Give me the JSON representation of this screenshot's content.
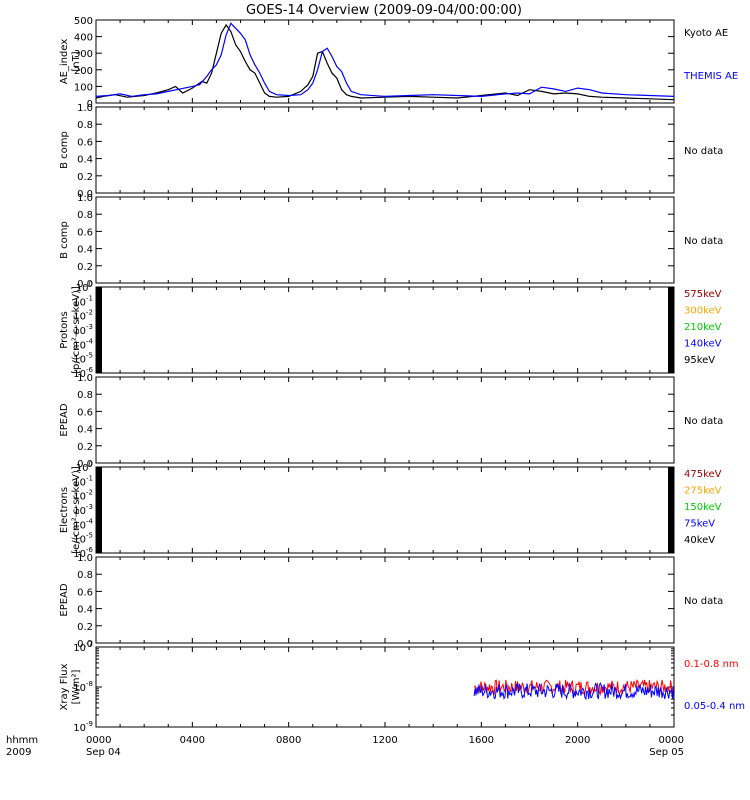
{
  "title": "GOES-14 Overview (2009-09-04/00:00:00)",
  "colors": {
    "black": "#000000",
    "blue": "#0000ff",
    "red": "#ff0000",
    "darkred": "#990000",
    "orange": "#ffa500",
    "green": "#00cc00"
  },
  "time_axis": {
    "hhmm_label": "hhmm",
    "year_label": "2009",
    "ticks": [
      {
        "hour": 0,
        "label": "0000",
        "sub": "Sep 04"
      },
      {
        "hour": 4,
        "label": "0400",
        "sub": ""
      },
      {
        "hour": 8,
        "label": "0800",
        "sub": ""
      },
      {
        "hour": 12,
        "label": "1200",
        "sub": ""
      },
      {
        "hour": 16,
        "label": "1600",
        "sub": ""
      },
      {
        "hour": 20,
        "label": "2000",
        "sub": ""
      },
      {
        "hour": 24,
        "label": "0000",
        "sub": "Sep 05"
      }
    ]
  },
  "chart_data": [
    {
      "type": "line",
      "ylabel": "AE_index",
      "units": "[nT]",
      "ylim": [
        0,
        500
      ],
      "yticks": [
        {
          "v": 0,
          "label": "0"
        },
        {
          "v": 100,
          "label": "100"
        },
        {
          "v": 200,
          "label": "200"
        },
        {
          "v": 300,
          "label": "300"
        },
        {
          "v": 400,
          "label": "400"
        },
        {
          "v": 500,
          "label": "500"
        }
      ],
      "series": [
        {
          "name": "Kyoto AE",
          "color": "#000000",
          "x": [
            0,
            0.3,
            0.8,
            1.3,
            2,
            2.5,
            3,
            3.3,
            3.6,
            4,
            4.4,
            4.6,
            4.8,
            5,
            5.2,
            5.4,
            5.6,
            5.8,
            6,
            6.2,
            6.4,
            6.6,
            6.8,
            7,
            7.2,
            7.5,
            8,
            8.5,
            8.8,
            9,
            9.2,
            9.4,
            9.6,
            9.8,
            10,
            10.2,
            10.4,
            10.6,
            11,
            12,
            13,
            14,
            15,
            16,
            17,
            17.5,
            18,
            18.5,
            19,
            19.5,
            20,
            20.5,
            21,
            22,
            23,
            24
          ],
          "y": [
            30,
            40,
            50,
            35,
            45,
            60,
            80,
            100,
            60,
            90,
            130,
            120,
            180,
            300,
            420,
            470,
            430,
            350,
            310,
            250,
            200,
            180,
            120,
            60,
            40,
            35,
            40,
            70,
            110,
            160,
            300,
            310,
            240,
            180,
            150,
            80,
            50,
            40,
            30,
            35,
            40,
            35,
            30,
            45,
            60,
            45,
            80,
            70,
            55,
            60,
            55,
            40,
            35,
            30,
            25,
            20
          ]
        },
        {
          "name": "THEMIS AE",
          "color": "#0000ff",
          "x": [
            0,
            0.5,
            1,
            1.5,
            2,
            2.5,
            3,
            3.5,
            4,
            4.3,
            4.6,
            4.8,
            5,
            5.2,
            5.4,
            5.6,
            5.8,
            6,
            6.2,
            6.4,
            6.6,
            6.8,
            7,
            7.2,
            7.5,
            8,
            8.5,
            8.8,
            9,
            9.2,
            9.4,
            9.6,
            9.8,
            10,
            10.2,
            10.4,
            10.6,
            11,
            12,
            13,
            14,
            15,
            16,
            17,
            17.5,
            18,
            18.5,
            19,
            19.5,
            20,
            20.5,
            21,
            22,
            23,
            24
          ],
          "y": [
            40,
            45,
            55,
            40,
            50,
            55,
            70,
            85,
            100,
            110,
            160,
            200,
            230,
            290,
            410,
            480,
            450,
            420,
            380,
            290,
            230,
            180,
            120,
            70,
            50,
            45,
            50,
            80,
            120,
            200,
            310,
            330,
            280,
            220,
            190,
            120,
            70,
            50,
            40,
            45,
            50,
            45,
            40,
            55,
            60,
            55,
            95,
            85,
            70,
            90,
            80,
            60,
            50,
            45,
            40
          ]
        }
      ]
    },
    {
      "type": "line",
      "ylabel": "B comp",
      "units": "",
      "ylim": [
        0,
        1
      ],
      "ticks": [
        "0.0",
        "0.2",
        "0.4",
        "0.6",
        "0.8",
        "1.0"
      ],
      "note": "No data",
      "series": []
    },
    {
      "type": "line",
      "ylabel": "B comp",
      "units": "",
      "ylim": [
        0,
        1
      ],
      "ticks": [
        "0.0",
        "0.2",
        "0.4",
        "0.6",
        "0.8",
        "1.0"
      ],
      "note": "No data",
      "series": []
    },
    {
      "type": "line",
      "log": true,
      "ylabel": "Protons",
      "units": "[p/(cm²-s-sr-keV)]",
      "ylim": [
        1e-06,
        1
      ],
      "yticks": [
        {
          "base": "10",
          "exp": "-6",
          "v": -6
        },
        {
          "base": "10",
          "exp": "-5",
          "v": -5
        },
        {
          "base": "10",
          "exp": "-4",
          "v": -4
        },
        {
          "base": "10",
          "exp": "-3",
          "v": -3
        },
        {
          "base": "10",
          "exp": "-2",
          "v": -2
        },
        {
          "base": "10",
          "exp": "-1",
          "v": -1
        },
        {
          "base": "10",
          "exp": "0",
          "v": 0
        }
      ],
      "series": [
        {
          "name": "575keV",
          "color": "#990000"
        },
        {
          "name": "300keV",
          "color": "#ffa500"
        },
        {
          "name": "210keV",
          "color": "#00cc00"
        },
        {
          "name": "140keV",
          "color": "#0000ff"
        },
        {
          "name": "95keV",
          "color": "#000000"
        }
      ]
    },
    {
      "type": "line",
      "ylabel": "EPEAD",
      "units": "",
      "ylim": [
        0,
        1
      ],
      "ticks": [
        "0.0",
        "0.2",
        "0.4",
        "0.6",
        "0.8",
        "1.0"
      ],
      "note": "No data",
      "series": []
    },
    {
      "type": "line",
      "log": true,
      "ylabel": "Electrons",
      "units": "[e/(cm²-s-sr-keV)]",
      "ylim": [
        1e-06,
        1
      ],
      "yticks": [
        {
          "base": "10",
          "exp": "-6",
          "v": -6
        },
        {
          "base": "10",
          "exp": "-5",
          "v": -5
        },
        {
          "base": "10",
          "exp": "-4",
          "v": -4
        },
        {
          "base": "10",
          "exp": "-3",
          "v": -3
        },
        {
          "base": "10",
          "exp": "-2",
          "v": -2
        },
        {
          "base": "10",
          "exp": "-1",
          "v": -1
        },
        {
          "base": "10",
          "exp": "0",
          "v": 0
        }
      ],
      "series": [
        {
          "name": "475keV",
          "color": "#990000"
        },
        {
          "name": "275keV",
          "color": "#ffa500"
        },
        {
          "name": "150keV",
          "color": "#00cc00"
        },
        {
          "name": "75keV",
          "color": "#0000ff"
        },
        {
          "name": "40keV",
          "color": "#000000"
        }
      ]
    },
    {
      "type": "line",
      "ylabel": "EPEAD",
      "units": "",
      "ylim": [
        0,
        1
      ],
      "ticks": [
        "0.0",
        "0.2",
        "0.4",
        "0.6",
        "0.8",
        "1.0"
      ],
      "note": "No data",
      "series": []
    },
    {
      "type": "line",
      "log": true,
      "ylabel": "Xray Flux",
      "units": "[W/m²]",
      "ylim": [
        1e-09,
        1e-07
      ],
      "yticks": [
        {
          "base": "10",
          "exp": "-9",
          "v": -9
        },
        {
          "base": "10",
          "exp": "-8",
          "v": -8
        },
        {
          "base": "10",
          "exp": "-7",
          "v": -7
        }
      ],
      "series": [
        {
          "name": "0.1-0.8 nm",
          "color": "#ff0000",
          "x_range": [
            15.7,
            24
          ],
          "center_log": -8.0,
          "spread_log": 0.18
        },
        {
          "name": "0.05-0.4 nm",
          "color": "#0000ff",
          "x_range": [
            15.7,
            24
          ],
          "center_log": -8.1,
          "spread_log": 0.2
        }
      ]
    }
  ]
}
